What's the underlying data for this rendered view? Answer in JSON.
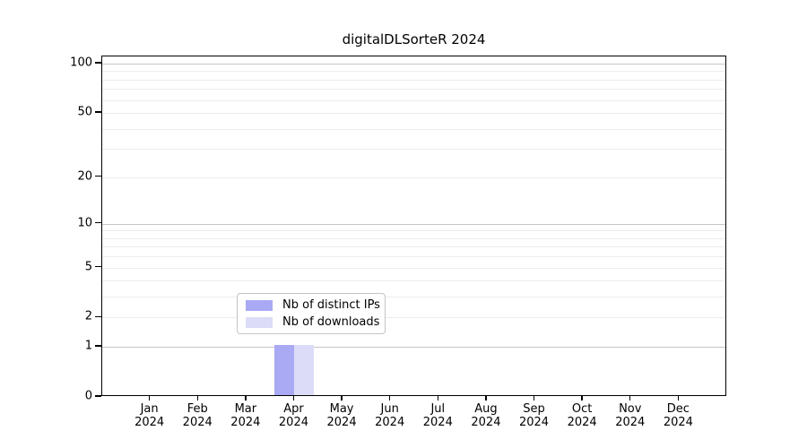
{
  "chart_data": {
    "type": "bar",
    "title": "digitalDLSorteR 2024",
    "categories": [
      "Jan",
      "Feb",
      "Mar",
      "Apr",
      "May",
      "Jun",
      "Jul",
      "Aug",
      "Sep",
      "Oct",
      "Nov",
      "Dec"
    ],
    "category_sublabel": "2024",
    "series": [
      {
        "name": "Nb of distinct IPs",
        "color": "#a9a9f4",
        "values": [
          0,
          0,
          0,
          1,
          0,
          0,
          0,
          0,
          0,
          0,
          0,
          0
        ]
      },
      {
        "name": "Nb of downloads",
        "color": "#dcdcf8",
        "values": [
          0,
          0,
          0,
          1,
          0,
          0,
          0,
          0,
          0,
          0,
          0,
          0
        ]
      }
    ],
    "y_axis": {
      "scale": "log1p",
      "ticks": [
        0,
        1,
        2,
        5,
        10,
        20,
        50,
        100
      ],
      "gridlines_major": [
        1,
        10,
        100
      ],
      "gridlines_minor": [
        2,
        3,
        4,
        5,
        6,
        7,
        8,
        9,
        20,
        30,
        40,
        50,
        60,
        70,
        80,
        90
      ],
      "range": [
        0,
        110
      ]
    },
    "legend": {
      "position": "lower center inside",
      "entries": [
        "Nb of distinct IPs",
        "Nb of downloads"
      ]
    },
    "colors": {
      "spine": "#000000",
      "grid_major": "#c6c6c6",
      "grid_minor": "#ececec",
      "legend_border": "#c4c4c4",
      "background": "#ffffff"
    }
  }
}
